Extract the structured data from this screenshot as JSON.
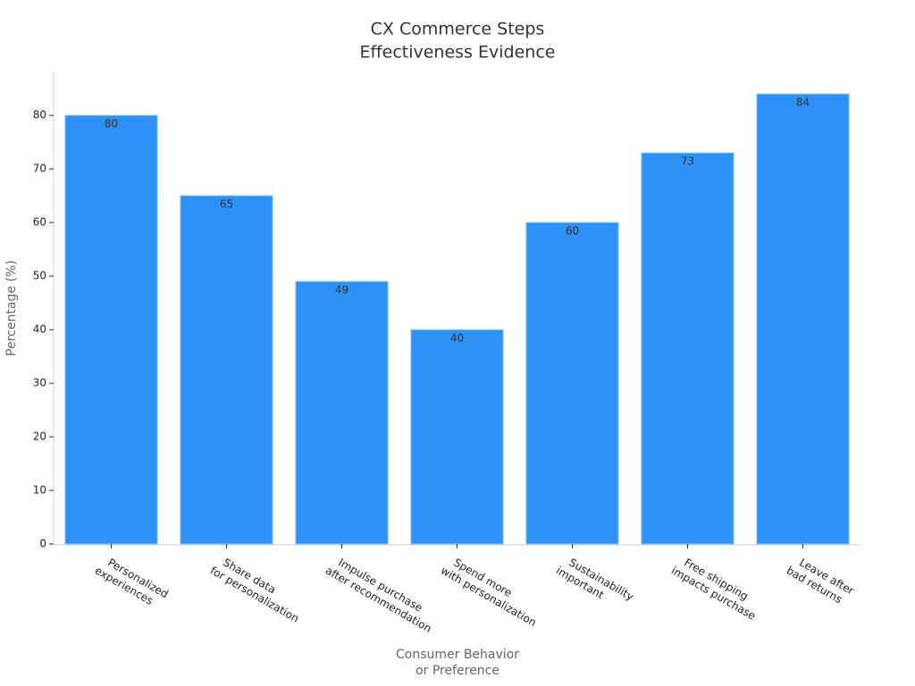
{
  "chart_data": {
    "type": "bar",
    "title": [
      "CX Commerce Steps",
      "Effectiveness Evidence"
    ],
    "x_label": [
      "Consumer Behavior",
      "or Preference"
    ],
    "y_label": "Percentage (%)",
    "categories": [
      [
        "Personalized",
        "experiences"
      ],
      [
        "Share data",
        "for personalization"
      ],
      [
        "Impulse purchase",
        "after recommendation"
      ],
      [
        "Spend more",
        "with personalization"
      ],
      [
        "Sustainability",
        "important"
      ],
      [
        "Free shipping",
        "impacts purchase"
      ],
      [
        "Leave after",
        "bad returns"
      ]
    ],
    "values": [
      80,
      65,
      49,
      40,
      60,
      73,
      84
    ],
    "color": "#2e91f5",
    "ylim": [
      0,
      88.2
    ],
    "yticks": [
      0,
      10,
      20,
      30,
      40,
      50,
      60,
      70,
      80
    ]
  }
}
